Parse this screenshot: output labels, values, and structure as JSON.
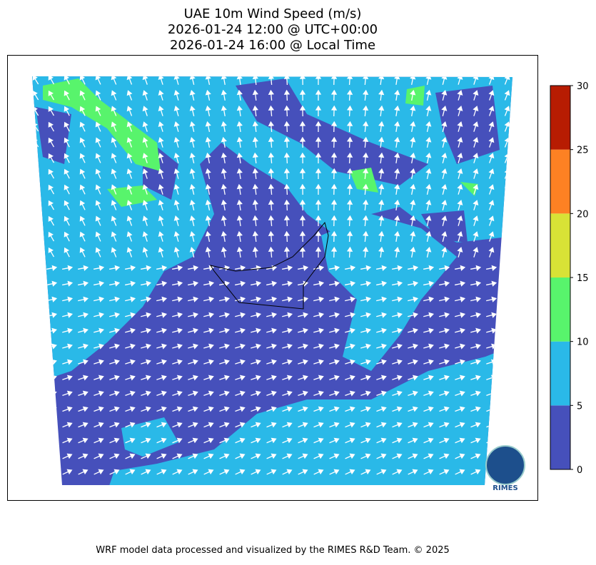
{
  "title": [
    "UAE 10m Wind Speed (m/s)",
    "2026-01-24 12:00 @ UTC+00:00",
    "2026-01-24 16:00 @ Local Time"
  ],
  "colorbar": {
    "levels": [
      0,
      5,
      10,
      15,
      20,
      25,
      30
    ],
    "colors": [
      "#4650bb",
      "#2ab9e8",
      "#58f46c",
      "#d8e236",
      "#fd8123",
      "#b71c02"
    ]
  },
  "logo": "RIMES",
  "footer": "WRF model data processed and visualized by the RIMES R&D Team. © 2025"
}
